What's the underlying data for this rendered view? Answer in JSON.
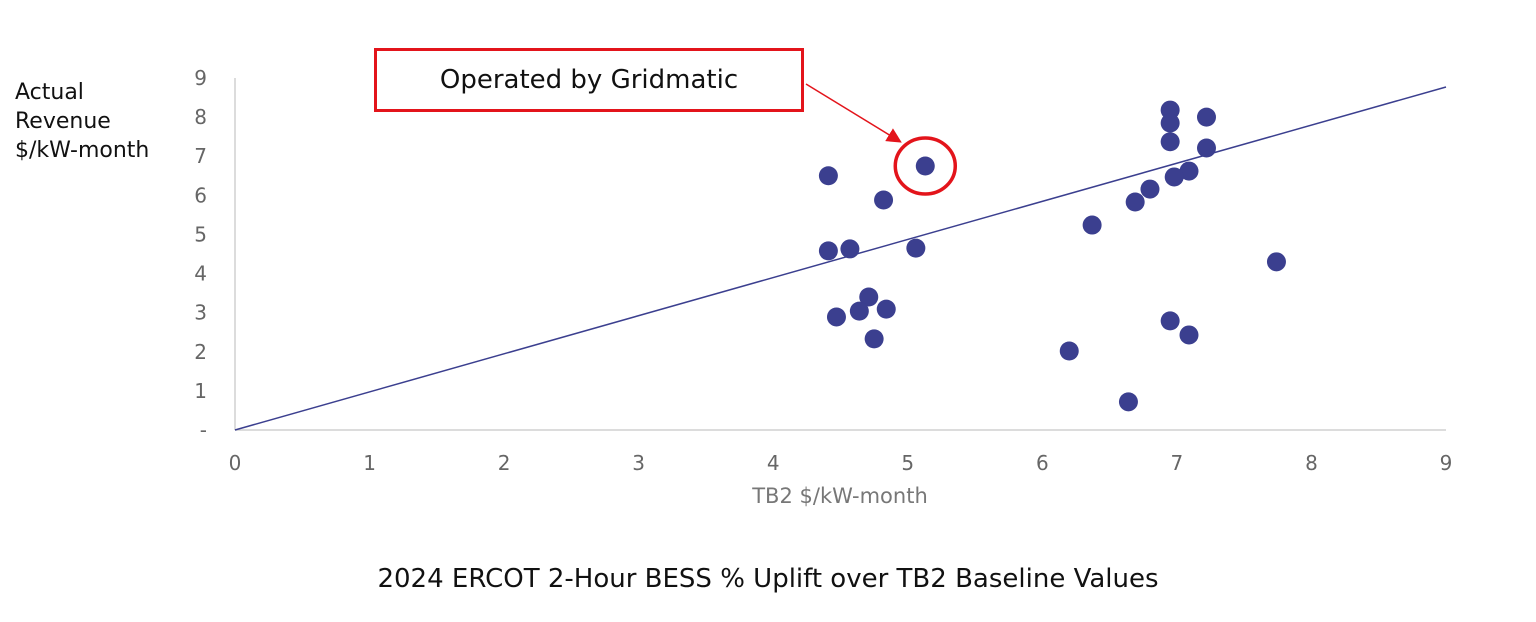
{
  "chart_data": {
    "type": "scatter",
    "title": "2024 ERCOT 2-Hour BESS % Uplift over TB2 Baseline Values",
    "xlabel": "TB2 $/kW-month",
    "ylabel": "Actual\nRevenue\n$/kW-month",
    "xlim": [
      0,
      9
    ],
    "ylim": [
      0,
      9
    ],
    "x_ticks": [
      "0",
      "1",
      "2",
      "3",
      "4",
      "5",
      "6",
      "7",
      "8",
      "9"
    ],
    "y_ticks": [
      "-",
      "1",
      "2",
      "3",
      "4",
      "5",
      "6",
      "7",
      "8",
      "9"
    ],
    "grid": false,
    "marker_color": "#3b3f8f",
    "trendline": {
      "x": [
        0,
        9
      ],
      "y": [
        0,
        8.77
      ],
      "color": "#3b3f8f"
    },
    "points": [
      {
        "x": 4.41,
        "y": 6.5
      },
      {
        "x": 5.13,
        "y": 6.75
      },
      {
        "x": 4.82,
        "y": 5.88
      },
      {
        "x": 4.41,
        "y": 4.58
      },
      {
        "x": 4.57,
        "y": 4.63
      },
      {
        "x": 5.06,
        "y": 4.65
      },
      {
        "x": 4.71,
        "y": 3.4
      },
      {
        "x": 4.64,
        "y": 3.04
      },
      {
        "x": 4.84,
        "y": 3.09
      },
      {
        "x": 4.47,
        "y": 2.89
      },
      {
        "x": 4.75,
        "y": 2.33
      },
      {
        "x": 6.95,
        "y": 8.18
      },
      {
        "x": 6.95,
        "y": 7.85
      },
      {
        "x": 7.22,
        "y": 8.0
      },
      {
        "x": 6.95,
        "y": 7.37
      },
      {
        "x": 7.22,
        "y": 7.21
      },
      {
        "x": 7.09,
        "y": 6.62
      },
      {
        "x": 6.98,
        "y": 6.47
      },
      {
        "x": 6.8,
        "y": 6.16
      },
      {
        "x": 6.69,
        "y": 5.83
      },
      {
        "x": 6.37,
        "y": 5.24
      },
      {
        "x": 7.74,
        "y": 4.3
      },
      {
        "x": 6.95,
        "y": 2.79
      },
      {
        "x": 7.09,
        "y": 2.43
      },
      {
        "x": 6.2,
        "y": 2.02
      },
      {
        "x": 6.64,
        "y": 0.72
      }
    ],
    "annotation": {
      "text": "Operated by Gridmatic",
      "point_index": 1,
      "color": "#e3141b"
    }
  }
}
